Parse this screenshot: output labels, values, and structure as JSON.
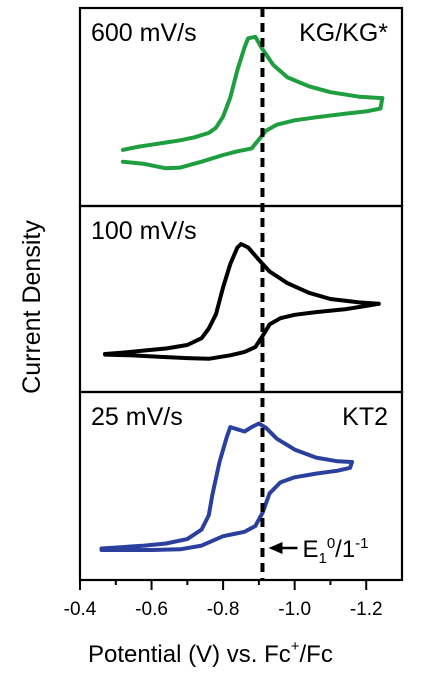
{
  "chart_data": {
    "type": "line",
    "xlabel_main": "Potential (V) vs. Fc",
    "xlabel_sup": "+",
    "xlabel_tail": "/Fc",
    "ylabel": "Current Density",
    "x_axis": {
      "reversed": true,
      "range": [
        -0.4,
        -1.3
      ],
      "ticks": [
        -0.4,
        -0.6,
        -0.8,
        -1.0,
        -1.2
      ],
      "tick_labels": [
        "-0.4",
        "-0.6",
        "-0.8",
        "-1.0",
        "-1.2"
      ]
    },
    "reference_line": {
      "x": -0.91,
      "label_main": "E",
      "label_sub1": "1",
      "label_sup1": "0",
      "label_mid": "/1",
      "label_sup2": "-1"
    },
    "panels": [
      {
        "scan_rate_label": "600 mV/s",
        "sample_label": "KG/KG*",
        "color": "#1e9e3f",
        "ylim": [
          -1.1,
          1.2
        ],
        "forward": [
          [
            -0.52,
            -0.53
          ],
          [
            -0.56,
            -0.49
          ],
          [
            -0.6,
            -0.46
          ],
          [
            -0.64,
            -0.43
          ],
          [
            -0.68,
            -0.4
          ],
          [
            -0.72,
            -0.36
          ],
          [
            -0.76,
            -0.3
          ],
          [
            -0.78,
            -0.23
          ],
          [
            -0.8,
            -0.08
          ],
          [
            -0.82,
            0.18
          ],
          [
            -0.84,
            0.55
          ],
          [
            -0.86,
            0.86
          ],
          [
            -0.87,
            0.98
          ],
          [
            -0.89,
            1.0
          ],
          [
            -0.91,
            0.83
          ],
          [
            -0.94,
            0.62
          ],
          [
            -0.98,
            0.45
          ],
          [
            -1.04,
            0.33
          ],
          [
            -1.1,
            0.25
          ],
          [
            -1.18,
            0.19
          ],
          [
            -1.245,
            0.17
          ]
        ],
        "reverse": [
          [
            -1.245,
            0.17
          ],
          [
            -1.24,
            0.03
          ],
          [
            -1.2,
            -0.01
          ],
          [
            -1.14,
            -0.04
          ],
          [
            -1.06,
            -0.09
          ],
          [
            -1.0,
            -0.13
          ],
          [
            -0.95,
            -0.19
          ],
          [
            -0.92,
            -0.27
          ],
          [
            -0.9,
            -0.39
          ],
          [
            -0.88,
            -0.51
          ],
          [
            -0.84,
            -0.55
          ],
          [
            -0.8,
            -0.6
          ],
          [
            -0.74,
            -0.69
          ],
          [
            -0.68,
            -0.77
          ],
          [
            -0.64,
            -0.78
          ],
          [
            -0.58,
            -0.72
          ],
          [
            -0.52,
            -0.69
          ]
        ]
      },
      {
        "scan_rate_label": "100 mV/s",
        "sample_label": "",
        "color": "#000000",
        "ylim": [
          -1.0,
          1.3
        ],
        "forward": [
          [
            -0.47,
            -0.65
          ],
          [
            -0.52,
            -0.63
          ],
          [
            -0.58,
            -0.6
          ],
          [
            -0.64,
            -0.57
          ],
          [
            -0.7,
            -0.52
          ],
          [
            -0.74,
            -0.42
          ],
          [
            -0.76,
            -0.28
          ],
          [
            -0.78,
            -0.07
          ],
          [
            -0.8,
            0.32
          ],
          [
            -0.82,
            0.66
          ],
          [
            -0.84,
            0.9
          ],
          [
            -0.85,
            0.95
          ],
          [
            -0.87,
            0.9
          ],
          [
            -0.9,
            0.72
          ],
          [
            -0.93,
            0.55
          ],
          [
            -0.98,
            0.38
          ],
          [
            -1.04,
            0.24
          ],
          [
            -1.1,
            0.15
          ],
          [
            -1.18,
            0.1
          ],
          [
            -1.235,
            0.08
          ]
        ],
        "reverse": [
          [
            -1.235,
            0.08
          ],
          [
            -1.2,
            0.05
          ],
          [
            -1.14,
            0.0
          ],
          [
            -1.06,
            -0.04
          ],
          [
            -1.0,
            -0.08
          ],
          [
            -0.96,
            -0.13
          ],
          [
            -0.93,
            -0.22
          ],
          [
            -0.91,
            -0.39
          ],
          [
            -0.89,
            -0.55
          ],
          [
            -0.86,
            -0.62
          ],
          [
            -0.82,
            -0.67
          ],
          [
            -0.76,
            -0.72
          ],
          [
            -0.7,
            -0.71
          ],
          [
            -0.62,
            -0.69
          ],
          [
            -0.54,
            -0.67
          ],
          [
            -0.47,
            -0.66
          ]
        ]
      },
      {
        "scan_rate_label": "25 mV/s",
        "sample_label": "KT2",
        "color": "#2b3f9e",
        "ylim": [
          -1.05,
          1.15
        ],
        "forward": [
          [
            -0.46,
            -0.81
          ],
          [
            -0.52,
            -0.79
          ],
          [
            -0.58,
            -0.77
          ],
          [
            -0.64,
            -0.74
          ],
          [
            -0.7,
            -0.68
          ],
          [
            -0.74,
            -0.55
          ],
          [
            -0.76,
            -0.35
          ],
          [
            -0.77,
            -0.07
          ],
          [
            -0.79,
            0.38
          ],
          [
            -0.81,
            0.72
          ],
          [
            -0.82,
            0.86
          ],
          [
            -0.84,
            0.83
          ],
          [
            -0.86,
            0.8
          ],
          [
            -0.88,
            0.86
          ],
          [
            -0.9,
            0.91
          ],
          [
            -0.92,
            0.85
          ],
          [
            -0.95,
            0.7
          ],
          [
            -1.0,
            0.55
          ],
          [
            -1.06,
            0.44
          ],
          [
            -1.12,
            0.39
          ],
          [
            -1.16,
            0.38
          ]
        ],
        "reverse": [
          [
            -1.16,
            0.38
          ],
          [
            -1.155,
            0.3
          ],
          [
            -1.12,
            0.26
          ],
          [
            -1.06,
            0.22
          ],
          [
            -1.0,
            0.17
          ],
          [
            -0.96,
            0.1
          ],
          [
            -0.93,
            -0.05
          ],
          [
            -0.91,
            -0.32
          ],
          [
            -0.89,
            -0.5
          ],
          [
            -0.86,
            -0.58
          ],
          [
            -0.83,
            -0.61
          ],
          [
            -0.8,
            -0.64
          ],
          [
            -0.74,
            -0.77
          ],
          [
            -0.68,
            -0.82
          ],
          [
            -0.6,
            -0.83
          ],
          [
            -0.52,
            -0.83
          ],
          [
            -0.46,
            -0.83
          ]
        ]
      }
    ]
  }
}
